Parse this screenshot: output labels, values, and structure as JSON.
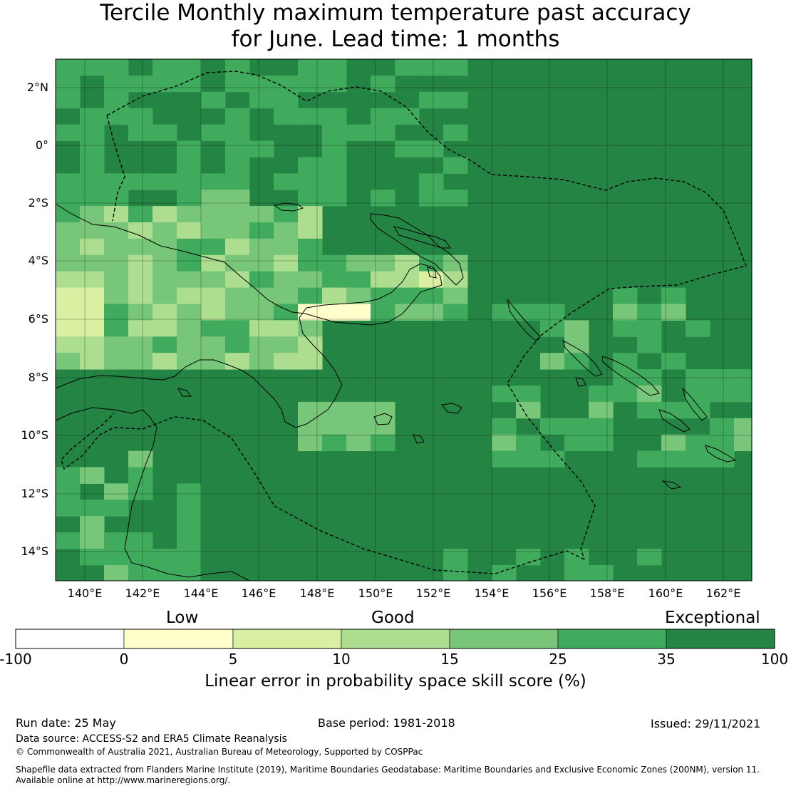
{
  "title_line1": "Tercile Monthly maximum temperature past accuracy",
  "title_line2": "for June. Lead time: 1 months",
  "map": {
    "lat_ticks": [
      "2°N",
      "0°",
      "2°S",
      "4°S",
      "6°S",
      "8°S",
      "10°S",
      "12°S",
      "14°S"
    ],
    "lon_ticks": [
      "140°E",
      "142°E",
      "144°E",
      "146°E",
      "148°E",
      "150°E",
      "152°E",
      "154°E",
      "156°E",
      "158°E",
      "160°E",
      "162°E"
    ]
  },
  "colorbar": {
    "categories": [
      "Low",
      "Good",
      "Exceptional"
    ],
    "ticks": [
      "-100",
      "0",
      "5",
      "10",
      "15",
      "25",
      "35",
      "100"
    ],
    "colors": [
      "#ffffff",
      "#ffffcc",
      "#d9f0a3",
      "#addd8e",
      "#78c679",
      "#41ab5d",
      "#238443"
    ],
    "title": "Linear error in probability space skill score (%)"
  },
  "footer": {
    "run_date": "Run date: 25 May",
    "base_period": "Base period: 1981-2018",
    "issued": "Issued: 29/11/2021",
    "data_source": "Data source: ACCESS-S2 and ERA5 Climate Reanalysis",
    "copyright": "© Commonwealth of Australia 2021, Australian Bureau of Meteorology, Supported by COSPPac",
    "shapefile_line1": "Shapefile data extracted from Flanders Marine Institute (2019), Maritime Boundaries Geodatabase: Maritime Boundaries and Exclusive Economic Zones (200NM), version 11.",
    "shapefile_line2": "Available online at http://www.marineregions.org/."
  }
}
